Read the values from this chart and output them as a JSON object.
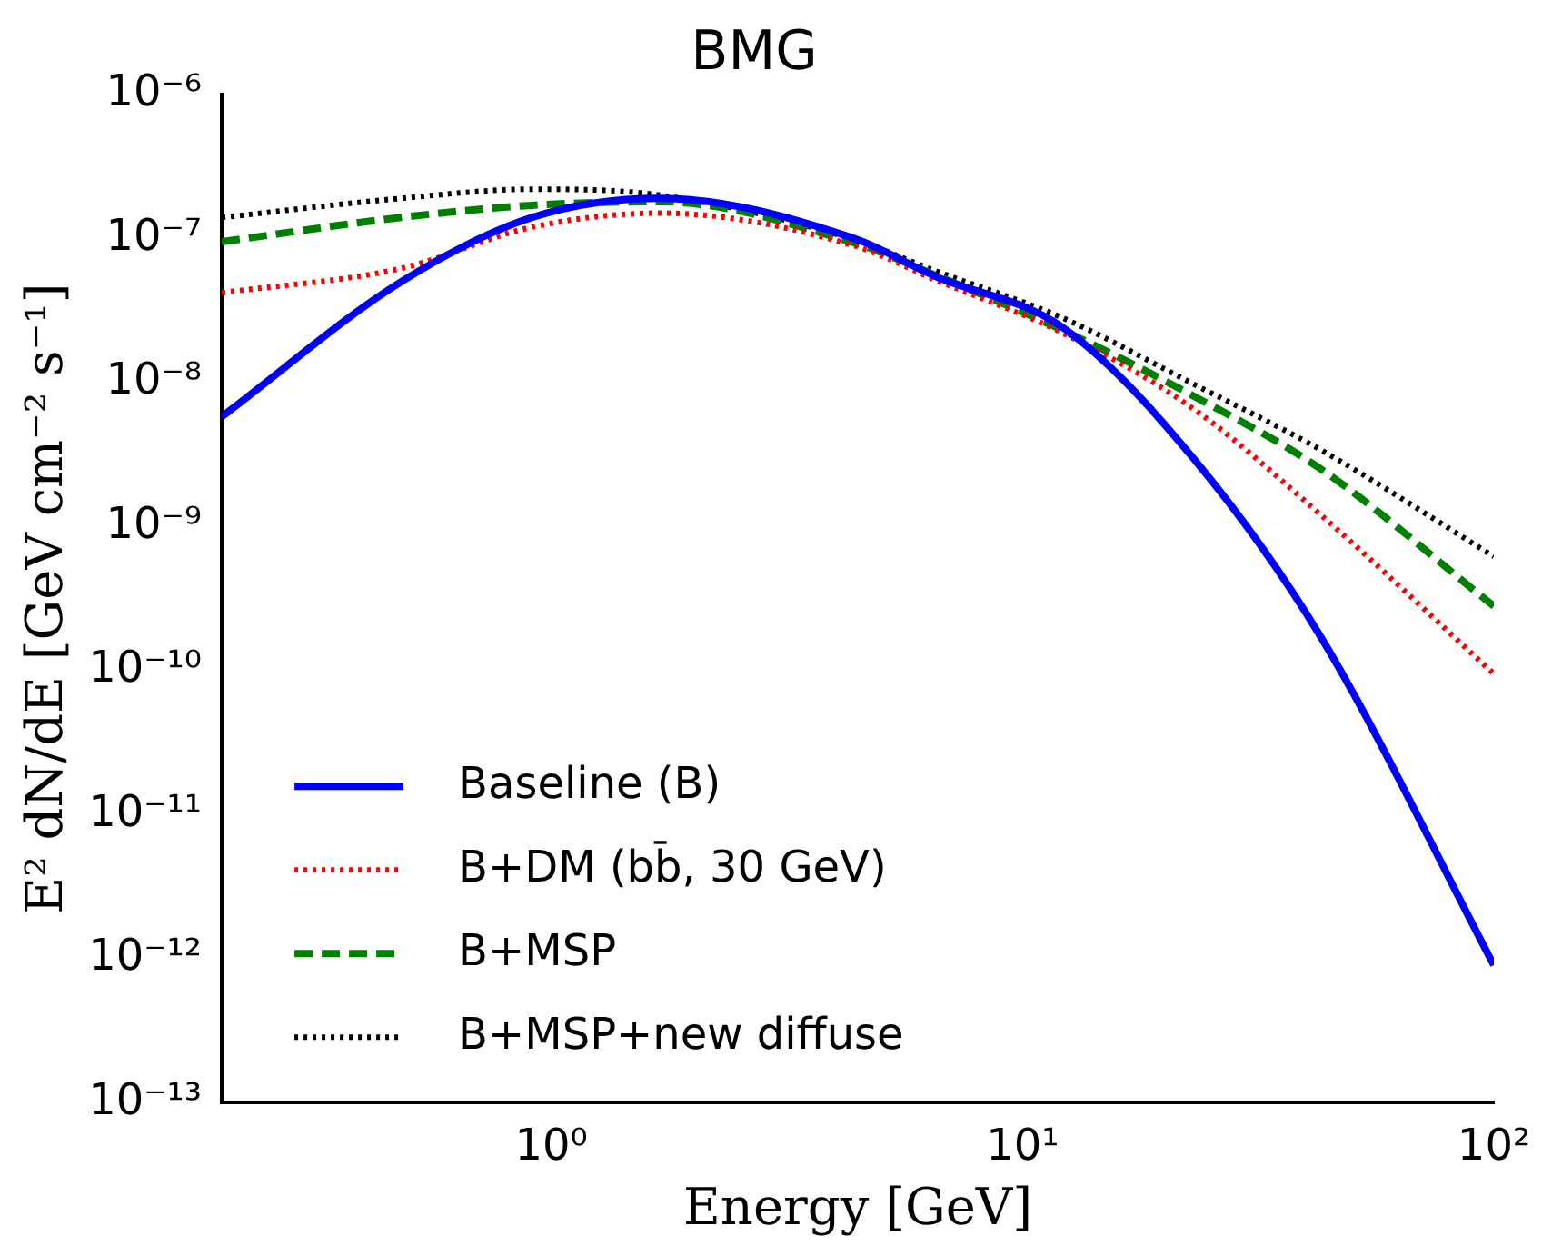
{
  "chart_data": {
    "type": "line",
    "title": "BMG",
    "xlabel": "Energy [GeV]",
    "ylabel": "E² dN/dE [GeV cm⁻² s⁻¹]",
    "log": "xy",
    "xlim": [
      0.2,
      100
    ],
    "ylim": [
      1e-13,
      1e-06
    ],
    "xticks": [
      {
        "value": 1,
        "label": "10⁰"
      },
      {
        "value": 10,
        "label": "10¹"
      },
      {
        "value": 100,
        "label": "10²"
      }
    ],
    "yticks": [
      {
        "value": 1e-13,
        "label": "10⁻¹³"
      },
      {
        "value": 1e-12,
        "label": "10⁻¹²"
      },
      {
        "value": 1e-11,
        "label": "10⁻¹¹"
      },
      {
        "value": 1e-10,
        "label": "10⁻¹⁰"
      },
      {
        "value": 1e-09,
        "label": "10⁻⁹"
      },
      {
        "value": 1e-08,
        "label": "10⁻⁸"
      },
      {
        "value": 1e-07,
        "label": "10⁻⁷"
      },
      {
        "value": 1e-06,
        "label": "10⁻⁶"
      }
    ],
    "grid": false,
    "legend": "bottom left",
    "marker": "none",
    "x": [
      0.2,
      0.48,
      0.91,
      1.7,
      4.4,
      6.5,
      12.2,
      23,
      43,
      100
    ],
    "series": [
      {
        "name": "Baseline (B)",
        "color": "#0000ff",
        "line_style": "solid",
        "values": [
          5.8e-09,
          5e-08,
          1.4e-07,
          1.9e-07,
          1e-07,
          5.5e-08,
          2.4e-08,
          3e-09,
          1.7e-10,
          9e-13
        ]
      },
      {
        "name": "B+DM (bb̄, 30 GeV)",
        "color": "#ff0000",
        "line_style": "dotted",
        "values": [
          4.2e-08,
          6.2e-08,
          1.2e-07,
          1.5e-07,
          8.9e-08,
          5.2e-08,
          2.2e-08,
          6.6e-09,
          1.2e-09,
          9.5e-11
        ]
      },
      {
        "name": "B+MSP",
        "color": "#008000",
        "line_style": "dashed",
        "values": [
          9.5e-08,
          1.4e-07,
          1.7e-07,
          1.8e-07,
          9.3e-08,
          5.6e-08,
          2.3e-08,
          8.1e-09,
          2.5e-09,
          2.8e-10
        ]
      },
      {
        "name": "B+MSP+new diffuse",
        "color": "#000000",
        "line_style": "dotted",
        "values": [
          1.4e-07,
          1.9e-07,
          2.2e-07,
          2e-07,
          9.8e-08,
          6e-08,
          2.8e-08,
          9.8e-09,
          3.4e-09,
          6.2e-10
        ]
      }
    ]
  }
}
